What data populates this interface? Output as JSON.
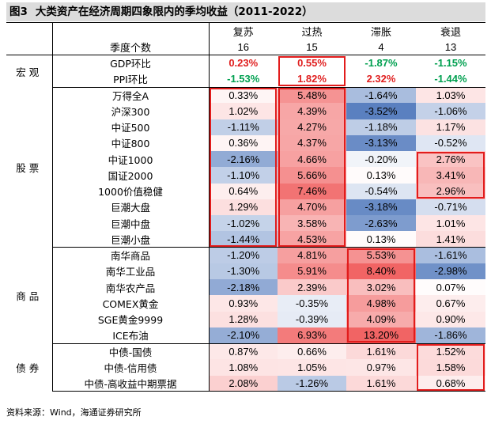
{
  "title": {
    "fig_no": "图3",
    "text": "大类资产在经济周期四象限内的季均收益（2011-2022）"
  },
  "source": "资料来源：Wind，海通证券研究所",
  "colors": {
    "pos_text": "#e02020",
    "neg_text": "#00a050",
    "box": "#e21c1c"
  },
  "chart_data": {
    "type": "table",
    "title": "大类资产在经济周期四象限内的季均收益（2011-2022）",
    "columns": [
      "复苏",
      "过热",
      "滞胀",
      "衰退"
    ],
    "quarter_count_label": "季度个数",
    "quarter_counts": [
      "16",
      "15",
      "4",
      "13"
    ],
    "groups": [
      {
        "name": "宏观",
        "rows": [
          {
            "label": "GDP环比",
            "values": [
              0.23,
              0.55,
              -1.87,
              -1.15
            ],
            "display": [
              "0.23%",
              "0.55%",
              "-1.87%",
              "-1.15%"
            ]
          },
          {
            "label": "PPI环比",
            "values": [
              -1.53,
              1.82,
              2.32,
              -1.44
            ],
            "display": [
              "-1.53%",
              "1.82%",
              "2.32%",
              "-1.44%"
            ]
          }
        ]
      },
      {
        "name": "股票",
        "rows": [
          {
            "label": "万得全A",
            "values": [
              0.33,
              5.48,
              -1.64,
              1.03
            ],
            "display": [
              "0.33%",
              "5.48%",
              "-1.64%",
              "1.03%"
            ]
          },
          {
            "label": "沪深300",
            "values": [
              1.02,
              4.39,
              -3.52,
              -1.06
            ],
            "display": [
              "1.02%",
              "4.39%",
              "-3.52%",
              "-1.06%"
            ]
          },
          {
            "label": "中证500",
            "values": [
              -1.11,
              4.27,
              -1.18,
              1.17
            ],
            "display": [
              "-1.11%",
              "4.27%",
              "-1.18%",
              "1.17%"
            ]
          },
          {
            "label": "中证800",
            "values": [
              0.36,
              4.37,
              -3.13,
              -0.52
            ],
            "display": [
              "0.36%",
              "4.37%",
              "-3.13%",
              "-0.52%"
            ]
          },
          {
            "label": "中证1000",
            "values": [
              -2.16,
              4.66,
              -0.2,
              2.76
            ],
            "display": [
              "-2.16%",
              "4.66%",
              "-0.20%",
              "2.76%"
            ]
          },
          {
            "label": "国证2000",
            "values": [
              -1.1,
              5.66,
              0.13,
              3.41
            ],
            "display": [
              "-1.10%",
              "5.66%",
              "0.13%",
              "3.41%"
            ]
          },
          {
            "label": "1000价值稳健",
            "values": [
              0.64,
              7.46,
              -0.54,
              2.96
            ],
            "display": [
              "0.64%",
              "7.46%",
              "-0.54%",
              "2.96%"
            ]
          },
          {
            "label": "巨潮大盘",
            "values": [
              1.29,
              4.7,
              -3.18,
              -0.71
            ],
            "display": [
              "1.29%",
              "4.70%",
              "-3.18%",
              "-0.71%"
            ]
          },
          {
            "label": "巨潮中盘",
            "values": [
              -1.02,
              3.58,
              -2.63,
              1.01
            ],
            "display": [
              "-1.02%",
              "3.58%",
              "-2.63%",
              "1.01%"
            ]
          },
          {
            "label": "巨潮小盘",
            "values": [
              -1.44,
              4.53,
              0.13,
              1.41
            ],
            "display": [
              "-1.44%",
              "4.53%",
              "0.13%",
              "1.41%"
            ]
          }
        ]
      },
      {
        "name": "商品",
        "rows": [
          {
            "label": "南华商品",
            "values": [
              -1.2,
              4.81,
              5.53,
              -1.61
            ],
            "display": [
              "-1.20%",
              "4.81%",
              "5.53%",
              "-1.61%"
            ]
          },
          {
            "label": "南华工业品",
            "values": [
              -1.3,
              5.91,
              8.4,
              -2.98
            ],
            "display": [
              "-1.30%",
              "5.91%",
              "8.40%",
              "-2.98%"
            ]
          },
          {
            "label": "南华农产品",
            "values": [
              -2.18,
              2.39,
              3.02,
              0.07
            ],
            "display": [
              "-2.18%",
              "2.39%",
              "3.02%",
              "0.07%"
            ]
          },
          {
            "label": "COMEX黄金",
            "values": [
              0.93,
              -0.35,
              4.98,
              0.67
            ],
            "display": [
              "0.93%",
              "-0.35%",
              "4.98%",
              "0.67%"
            ]
          },
          {
            "label": "SGE黄金9999",
            "values": [
              1.28,
              -0.39,
              4.09,
              0.9
            ],
            "display": [
              "1.28%",
              "-0.39%",
              "4.09%",
              "0.90%"
            ]
          },
          {
            "label": "ICE布油",
            "values": [
              -2.1,
              6.93,
              13.2,
              -1.86
            ],
            "display": [
              "-2.10%",
              "6.93%",
              "13.20%",
              "-1.86%"
            ]
          }
        ]
      },
      {
        "name": "债券",
        "rows": [
          {
            "label": "中债-国债",
            "values": [
              0.87,
              0.66,
              1.61,
              1.52
            ],
            "display": [
              "0.87%",
              "0.66%",
              "1.61%",
              "1.52%"
            ]
          },
          {
            "label": "中债-信用债",
            "values": [
              1.08,
              1.05,
              0.97,
              1.58
            ],
            "display": [
              "1.08%",
              "1.05%",
              "0.97%",
              "1.58%"
            ]
          },
          {
            "label": "中债-高收益中期票据",
            "values": [
              2.08,
              -1.26,
              1.61,
              0.68
            ],
            "display": [
              "2.08%",
              "-1.26%",
              "1.61%",
              "0.68%"
            ]
          }
        ]
      }
    ],
    "highlight_boxes": [
      {
        "col": 3,
        "from_row": "中证1000",
        "to_row": "1000价值稳健"
      },
      {
        "col": 0,
        "from_row": "万得全A",
        "to_row": "巨潮小盘"
      },
      {
        "col": 1,
        "from_row": "GDP环比",
        "to_row": "PPI环比"
      },
      {
        "col": 1,
        "from_row": "万得全A",
        "to_row": "巨潮小盘"
      },
      {
        "col": 2,
        "from_row": "南华商品",
        "to_row": "ICE布油"
      },
      {
        "col": 3,
        "from_row": "中债-国债",
        "to_row": "中债-高收益中期票据"
      }
    ]
  }
}
